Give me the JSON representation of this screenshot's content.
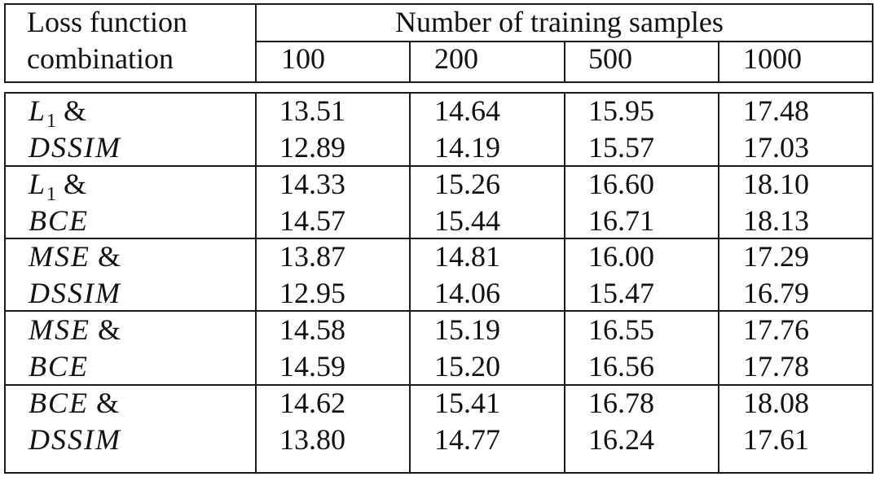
{
  "header": {
    "col0_line1": "Loss function",
    "col0_line2": "combination",
    "group_label": "Number of training samples",
    "sample_sizes": [
      "100",
      "200",
      "500",
      "1000"
    ]
  },
  "rows": [
    {
      "label_line1": {
        "math": "L",
        "sub": "1",
        "suffix": " &"
      },
      "label_line2": "DSSIM",
      "values": [
        [
          "13.51",
          "14.64",
          "15.95",
          "17.48"
        ],
        [
          "12.89",
          "14.19",
          "15.57",
          "17.03"
        ]
      ]
    },
    {
      "label_line1": {
        "math": "L",
        "sub": "1",
        "suffix": " &"
      },
      "label_line2": "BCE",
      "values": [
        [
          "14.33",
          "15.26",
          "16.60",
          "18.10"
        ],
        [
          "14.57",
          "15.44",
          "16.71",
          "18.13"
        ]
      ]
    },
    {
      "label_line1": {
        "math": "MSE",
        "sub": "",
        "suffix": " &"
      },
      "label_line2": "DSSIM",
      "values": [
        [
          "13.87",
          "14.81",
          "16.00",
          "17.29"
        ],
        [
          "12.95",
          "14.06",
          "15.47",
          "16.79"
        ]
      ]
    },
    {
      "label_line1": {
        "math": "MSE",
        "sub": "",
        "suffix": " &"
      },
      "label_line2": "BCE",
      "values": [
        [
          "14.58",
          "15.19",
          "16.55",
          "17.76"
        ],
        [
          "14.59",
          "15.20",
          "16.56",
          "17.78"
        ]
      ]
    },
    {
      "label_line1": {
        "math": "BCE",
        "sub": "",
        "suffix": " &"
      },
      "label_line2": "DSSIM",
      "values": [
        [
          "14.62",
          "15.41",
          "16.78",
          "18.08"
        ],
        [
          "13.80",
          "14.77",
          "16.24",
          "17.61"
        ]
      ]
    }
  ]
}
